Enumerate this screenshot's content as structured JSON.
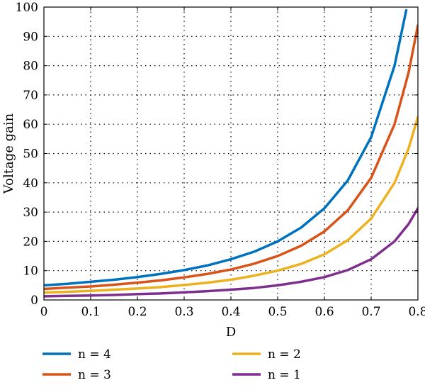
{
  "chart_data": {
    "type": "line",
    "title": "",
    "xlabel": "D",
    "ylabel": "Voltage gain",
    "xlim": [
      0,
      0.8
    ],
    "ylim": [
      0,
      100
    ],
    "x_ticks": [
      0,
      0.1,
      0.2,
      0.3,
      0.4,
      0.5,
      0.6,
      0.7,
      0.8
    ],
    "x_tick_labels": [
      "0",
      "0.1",
      "0.2",
      "0.3",
      "0.4",
      "0.5",
      "0.6",
      "0.7",
      "0.8"
    ],
    "y_ticks": [
      0,
      10,
      20,
      30,
      40,
      50,
      60,
      70,
      80,
      90,
      100
    ],
    "y_tick_labels": [
      "0",
      "10",
      "20",
      "30",
      "40",
      "50",
      "60",
      "70",
      "80",
      "90",
      "100"
    ],
    "grid": "dotted",
    "legend_position": "bottom",
    "series": [
      {
        "name": "n = 4",
        "color": "#0072BD",
        "x": [
          0,
          0.05,
          0.1,
          0.15,
          0.2,
          0.25,
          0.3,
          0.35,
          0.4,
          0.45,
          0.5,
          0.55,
          0.6,
          0.65,
          0.7,
          0.75,
          0.775
        ],
        "values": [
          5.0,
          5.5,
          6.2,
          6.9,
          7.8,
          8.9,
          10.2,
          11.8,
          13.9,
          16.5,
          20.0,
          24.7,
          31.3,
          40.8,
          55.6,
          80.0,
          98.9
        ]
      },
      {
        "name": "n = 3",
        "color": "#D95319",
        "x": [
          0,
          0.05,
          0.1,
          0.15,
          0.2,
          0.25,
          0.3,
          0.35,
          0.4,
          0.45,
          0.5,
          0.55,
          0.6,
          0.65,
          0.7,
          0.75,
          0.78,
          0.8
        ],
        "values": [
          3.75,
          4.2,
          4.6,
          5.2,
          5.9,
          6.7,
          7.7,
          8.9,
          10.4,
          12.4,
          15.0,
          18.5,
          23.4,
          30.6,
          41.7,
          60.0,
          77.6,
          93.8
        ]
      },
      {
        "name": "n = 2",
        "color": "#EDB120",
        "x": [
          0,
          0.05,
          0.1,
          0.15,
          0.2,
          0.25,
          0.3,
          0.35,
          0.4,
          0.45,
          0.5,
          0.55,
          0.6,
          0.65,
          0.7,
          0.75,
          0.78,
          0.8
        ],
        "values": [
          2.5,
          2.8,
          3.1,
          3.5,
          3.9,
          4.4,
          5.1,
          5.9,
          6.9,
          8.3,
          10.0,
          12.3,
          15.6,
          20.4,
          27.8,
          40.0,
          51.7,
          62.5
        ]
      },
      {
        "name": "n = 1",
        "color": "#7E2F8E",
        "x": [
          0,
          0.05,
          0.1,
          0.15,
          0.2,
          0.25,
          0.3,
          0.35,
          0.4,
          0.45,
          0.5,
          0.55,
          0.6,
          0.65,
          0.7,
          0.75,
          0.78,
          0.8
        ],
        "values": [
          1.25,
          1.4,
          1.5,
          1.7,
          2.0,
          2.2,
          2.6,
          3.0,
          3.5,
          4.1,
          5.0,
          6.2,
          7.8,
          10.2,
          13.9,
          20.0,
          25.9,
          31.3
        ]
      }
    ]
  }
}
